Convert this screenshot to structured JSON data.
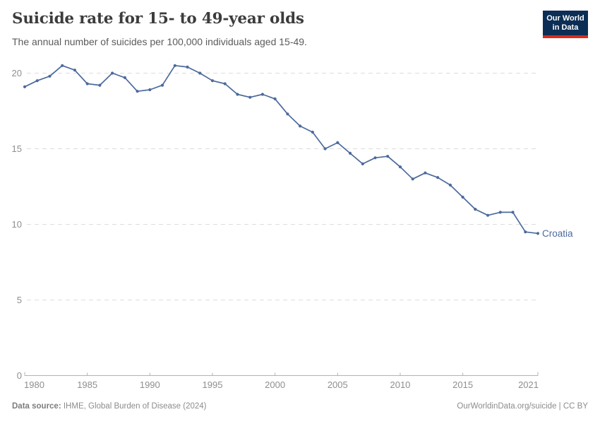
{
  "header": {
    "title": "Suicide rate for 15- to 49-year olds",
    "subtitle": "The annual number of suicides per 100,000 individuals aged 15-49.",
    "logo": {
      "line1": "Our World",
      "line2": "in Data",
      "bg_color": "#0d2e54",
      "stripe_color": "#dc2a1a"
    }
  },
  "chart_data": {
    "type": "line",
    "title": "Suicide rate for 15- to 49-year olds",
    "entity": "Croatia",
    "x": [
      1980,
      1981,
      1982,
      1983,
      1984,
      1985,
      1986,
      1987,
      1988,
      1989,
      1990,
      1991,
      1992,
      1993,
      1994,
      1995,
      1996,
      1997,
      1998,
      1999,
      2000,
      2001,
      2002,
      2003,
      2004,
      2005,
      2006,
      2007,
      2008,
      2009,
      2010,
      2011,
      2012,
      2013,
      2014,
      2015,
      2016,
      2017,
      2018,
      2019,
      2020,
      2021
    ],
    "series": [
      {
        "name": "Croatia",
        "color": "#4C6A9C",
        "values": [
          19.1,
          19.5,
          19.8,
          20.5,
          20.2,
          19.3,
          19.2,
          20.0,
          19.7,
          18.8,
          18.9,
          19.2,
          20.5,
          20.4,
          20.0,
          19.5,
          19.3,
          18.6,
          18.4,
          18.6,
          18.3,
          17.3,
          16.5,
          16.1,
          15.0,
          15.4,
          14.7,
          14.0,
          14.4,
          14.5,
          13.8,
          13.0,
          13.4,
          13.1,
          12.6,
          11.8,
          11.0,
          10.6,
          10.8,
          10.8,
          9.5,
          9.4
        ]
      }
    ],
    "xlabel": "",
    "ylabel": "",
    "ylim": [
      0,
      20
    ],
    "yticks": [
      0,
      5,
      10,
      15,
      20
    ],
    "ytick_labels": [
      "0",
      "5",
      "10",
      "15",
      "20"
    ],
    "xticks": [
      1980,
      1985,
      1990,
      1995,
      2000,
      2005,
      2010,
      2015,
      2021
    ],
    "xtick_labels": [
      "1980",
      "1985",
      "1990",
      "1995",
      "2000",
      "2005",
      "2010",
      "2015",
      "2021"
    ],
    "grid": "dashed-horizontal",
    "legend_position": "end-of-line"
  },
  "footer": {
    "source_label": "Data source:",
    "source_value": " IHME, Global Burden of Disease (2024)",
    "link": "OurWorldinData.org/suicide | CC BY"
  },
  "colors": {
    "line": "#4C6A9C",
    "grid": "#dddddd",
    "axis": "#b3b3b3",
    "tick_label": "#8f8f8f",
    "title": "#3c3c3c",
    "subtitle": "#5b5b5b",
    "footer": "#8c8c8c"
  }
}
